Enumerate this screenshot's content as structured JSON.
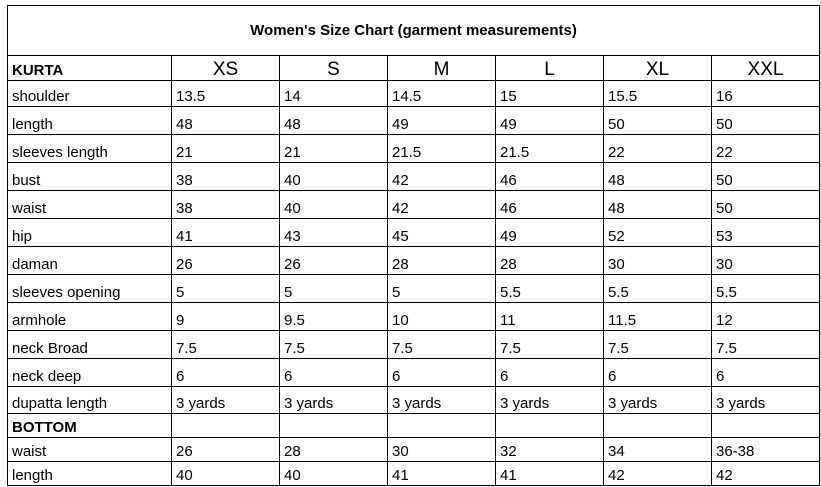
{
  "title": "Women's Size Chart (garment measurements)",
  "kurta": {
    "label": "KURTA",
    "sizes": [
      "XS",
      "S",
      "M",
      "L",
      "XL",
      "XXL"
    ],
    "rows": [
      {
        "label": "shoulder",
        "values": [
          "13.5",
          "14",
          "14.5",
          "15",
          "15.5",
          "16"
        ]
      },
      {
        "label": "length",
        "values": [
          "48",
          "48",
          "49",
          "49",
          "50",
          "50"
        ]
      },
      {
        "label": "sleeves length",
        "values": [
          "21",
          "21",
          "21.5",
          "21.5",
          "22",
          "22"
        ]
      },
      {
        "label": "bust",
        "values": [
          "38",
          "40",
          "42",
          "46",
          "48",
          "50"
        ]
      },
      {
        "label": "waist",
        "values": [
          "38",
          "40",
          "42",
          "46",
          "48",
          "50"
        ]
      },
      {
        "label": "hip",
        "values": [
          "41",
          "43",
          "45",
          "49",
          "52",
          "53"
        ]
      },
      {
        "label": "daman",
        "values": [
          "26",
          "26",
          "28",
          "28",
          "30",
          "30"
        ]
      },
      {
        "label": "sleeves opening",
        "values": [
          "5",
          "5",
          "5",
          "5.5",
          "5.5",
          "5.5"
        ]
      },
      {
        "label": "armhole",
        "values": [
          "9",
          "9.5",
          "10",
          "11",
          "11.5",
          "12"
        ]
      },
      {
        "label": "neck Broad",
        "values": [
          "7.5",
          "7.5",
          "7.5",
          "7.5",
          "7.5",
          "7.5"
        ]
      },
      {
        "label": "neck deep",
        "values": [
          "6",
          "6",
          "6",
          "6",
          "6",
          "6"
        ]
      },
      {
        "label": "dupatta length",
        "values": [
          "3 yards",
          "3 yards",
          "3 yards",
          "3 yards",
          "3 yards",
          "3 yards"
        ]
      }
    ]
  },
  "bottom": {
    "label": "BOTTOM",
    "rows": [
      {
        "label": "waist",
        "values": [
          "26",
          "28",
          "30",
          "32",
          "34",
          "36-38"
        ]
      },
      {
        "label": "length",
        "values": [
          "40",
          "40",
          "41",
          "41",
          "42",
          "42"
        ]
      }
    ]
  }
}
